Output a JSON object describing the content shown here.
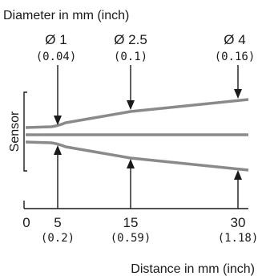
{
  "top_title": "Diameter in mm (inch)",
  "bottom_title": "Distance in mm (inch)",
  "side_label": "Sensor",
  "diameter_labels": [
    {
      "main": "Ø 1",
      "sub": "(0.04)"
    },
    {
      "main": "Ø 2.5",
      "sub": "(0.1)"
    },
    {
      "main": "Ø 4",
      "sub": "(0.16)"
    }
  ],
  "axis_ticks": [
    {
      "main": "0",
      "sub": ""
    },
    {
      "main": "5",
      "sub": "(0.2)"
    },
    {
      "main": "15",
      "sub": "(0.59)"
    },
    {
      "main": "30",
      "sub": "(1.18)"
    }
  ],
  "colors": {
    "beam": "#8a8a8a",
    "text": "#1a1a1a",
    "arrow": "#1a1a1a"
  }
}
